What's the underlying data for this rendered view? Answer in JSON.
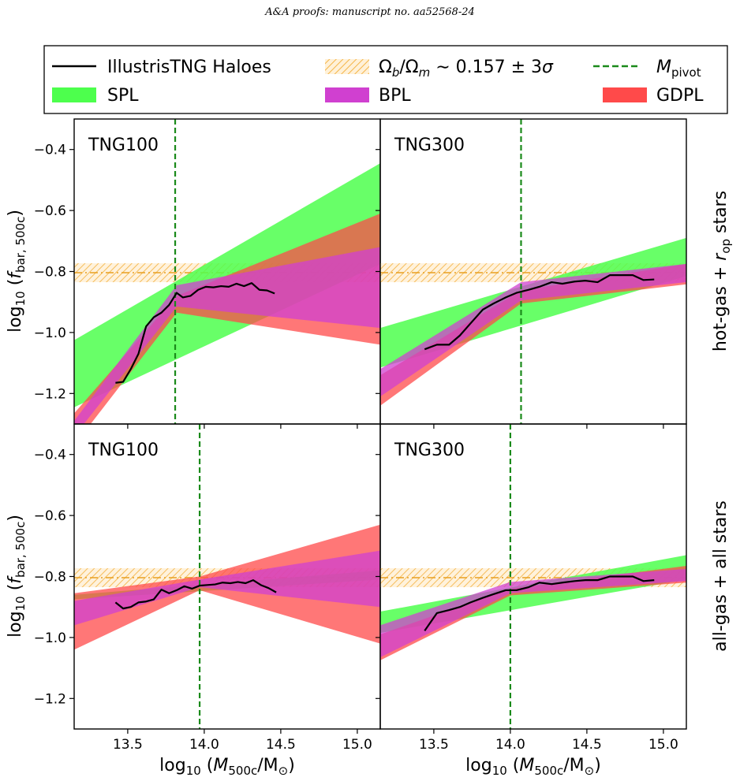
{
  "header": "A&A proofs: manuscript no. aa52568-24",
  "colors": {
    "spl": "#4dff4d",
    "bpl": "#d040d0",
    "gdpl": "#ff4a4a",
    "haloes": "#000000",
    "pivot": "#1a8a1a",
    "omega": "#ffcf80",
    "omega_line": "#e8a020"
  },
  "legend": [
    {
      "key": "haloes",
      "label": "IllustrisTNG Haloes",
      "style": "line"
    },
    {
      "key": "omega",
      "label": "Ωb/Ωm ∼ 0.157 ± 3σ",
      "style": "hatch"
    },
    {
      "key": "pivot",
      "label": "Mpivot",
      "style": "dashed"
    },
    {
      "key": "spl",
      "label": "SPL",
      "style": "patch"
    },
    {
      "key": "bpl",
      "label": "BPL",
      "style": "patch"
    },
    {
      "key": "gdpl",
      "label": "GDPL",
      "style": "patch"
    }
  ],
  "row_labels": [
    "hot-gas + rop stars",
    "all-gas + all stars"
  ],
  "xlabel": "log10 (M500c/M⊙)",
  "ylabel": "log10 (fbar, 500c)",
  "chart_data": {
    "type": "line",
    "xlim": [
      13.15,
      15.15
    ],
    "ylim": [
      -1.3,
      -0.3
    ],
    "xticks": [
      13.5,
      14.0,
      14.5,
      15.0
    ],
    "yticks": [
      -0.4,
      -0.6,
      -0.8,
      -1.0,
      -1.2
    ],
    "omega_band": {
      "center": -0.804,
      "low": -0.835,
      "high": -0.773
    },
    "panels": [
      {
        "title": "TNG100",
        "pivot": 13.81,
        "haloes": {
          "x": [
            13.42,
            13.47,
            13.52,
            13.57,
            13.62,
            13.67,
            13.72,
            13.77,
            13.82,
            13.86,
            13.91,
            13.96,
            14.01,
            14.06,
            14.11,
            14.16,
            14.21,
            14.26,
            14.31,
            14.36,
            14.41,
            14.46
          ],
          "y": [
            -1.165,
            -1.162,
            -1.12,
            -1.07,
            -0.98,
            -0.95,
            -0.935,
            -0.91,
            -0.87,
            -0.885,
            -0.88,
            -0.86,
            -0.85,
            -0.852,
            -0.848,
            -0.85,
            -0.84,
            -0.848,
            -0.838,
            -0.86,
            -0.862,
            -0.872
          ]
        },
        "bands": [
          {
            "key": "spl",
            "x": [
              13.15,
              15.15
            ],
            "lo": [
              -1.245,
              -0.775
            ],
            "hi": [
              -1.025,
              -0.445
            ]
          },
          {
            "key": "gdpl",
            "x": [
              13.15,
              13.82,
              15.15
            ],
            "lo": [
              -1.37,
              -0.935,
              -1.04
            ],
            "hi": [
              -1.265,
              -0.88,
              -0.61
            ]
          },
          {
            "key": "bpl",
            "x": [
              13.15,
              13.82,
              15.15
            ],
            "lo": [
              -1.34,
              -0.915,
              -0.985
            ],
            "hi": [
              -1.29,
              -0.845,
              -0.72
            ]
          }
        ]
      },
      {
        "title": "TNG300",
        "pivot": 14.07,
        "haloes": {
          "x": [
            13.44,
            13.52,
            13.6,
            13.67,
            13.74,
            13.82,
            13.89,
            13.97,
            14.04,
            14.12,
            14.19,
            14.27,
            14.34,
            14.42,
            14.49,
            14.57,
            14.65,
            14.72,
            14.8,
            14.87,
            14.94
          ],
          "y": [
            -1.055,
            -1.04,
            -1.04,
            -1.01,
            -0.97,
            -0.925,
            -0.905,
            -0.885,
            -0.87,
            -0.86,
            -0.85,
            -0.835,
            -0.84,
            -0.833,
            -0.83,
            -0.835,
            -0.812,
            -0.812,
            -0.812,
            -0.828,
            -0.826
          ]
        },
        "bands": [
          {
            "key": "spl",
            "x": [
              13.15,
              15.15
            ],
            "lo": [
              -1.115,
              -0.815
            ],
            "hi": [
              -0.985,
              -0.69
            ]
          },
          {
            "key": "gdpl",
            "x": [
              13.15,
              14.07,
              15.15
            ],
            "lo": [
              -1.24,
              -0.905,
              -0.842
            ],
            "hi": [
              -1.14,
              -0.862,
              -0.775
            ]
          },
          {
            "key": "bpl",
            "x": [
              13.15,
              14.07,
              15.15
            ],
            "lo": [
              -1.21,
              -0.895,
              -0.835
            ],
            "hi": [
              -1.12,
              -0.835,
              -0.775
            ]
          }
        ]
      },
      {
        "title": "TNG100",
        "pivot": 13.97,
        "haloes": {
          "x": [
            13.42,
            13.47,
            13.52,
            13.57,
            13.62,
            13.67,
            13.72,
            13.77,
            13.82,
            13.87,
            13.92,
            13.97,
            14.02,
            14.07,
            14.12,
            14.17,
            14.22,
            14.27,
            14.32,
            14.37,
            14.42,
            14.47
          ],
          "y": [
            -0.885,
            -0.905,
            -0.9,
            -0.885,
            -0.882,
            -0.875,
            -0.843,
            -0.855,
            -0.845,
            -0.832,
            -0.84,
            -0.83,
            -0.828,
            -0.826,
            -0.82,
            -0.822,
            -0.818,
            -0.822,
            -0.812,
            -0.828,
            -0.838,
            -0.852
          ]
        },
        "bands": [
          {
            "key": "spl",
            "x": [
              13.15,
              15.15
            ],
            "lo": [
              -0.875,
              -0.81
            ],
            "hi": [
              -0.86,
              -0.78
            ]
          },
          {
            "key": "gdpl",
            "x": [
              13.15,
              13.97,
              15.15
            ],
            "lo": [
              -1.04,
              -0.845,
              -1.02
            ],
            "hi": [
              -0.855,
              -0.8,
              -0.63
            ]
          },
          {
            "key": "bpl",
            "x": [
              13.15,
              13.97,
              15.15
            ],
            "lo": [
              -0.96,
              -0.835,
              -0.9
            ],
            "hi": [
              -0.88,
              -0.81,
              -0.715
            ]
          }
        ]
      },
      {
        "title": "TNG300",
        "pivot": 14.0,
        "haloes": {
          "x": [
            13.44,
            13.52,
            13.6,
            13.67,
            13.74,
            13.82,
            13.89,
            13.97,
            14.04,
            14.12,
            14.19,
            14.27,
            14.34,
            14.42,
            14.49,
            14.57,
            14.65,
            14.72,
            14.8,
            14.87,
            14.94
          ],
          "y": [
            -0.978,
            -0.92,
            -0.91,
            -0.9,
            -0.885,
            -0.87,
            -0.858,
            -0.845,
            -0.845,
            -0.835,
            -0.82,
            -0.825,
            -0.82,
            -0.815,
            -0.812,
            -0.812,
            -0.8,
            -0.8,
            -0.8,
            -0.815,
            -0.812
          ]
        },
        "bands": [
          {
            "key": "spl",
            "x": [
              13.15,
              15.15
            ],
            "lo": [
              -0.985,
              -0.81
            ],
            "hi": [
              -0.915,
              -0.73
            ]
          },
          {
            "key": "gdpl",
            "x": [
              13.15,
              14.0,
              15.15
            ],
            "lo": [
              -1.075,
              -0.862,
              -0.82
            ],
            "hi": [
              -0.99,
              -0.84,
              -0.765
            ]
          },
          {
            "key": "bpl",
            "x": [
              13.15,
              14.0,
              15.15
            ],
            "lo": [
              -1.065,
              -0.855,
              -0.815
            ],
            "hi": [
              -0.96,
              -0.818,
              -0.775
            ]
          }
        ]
      }
    ]
  }
}
